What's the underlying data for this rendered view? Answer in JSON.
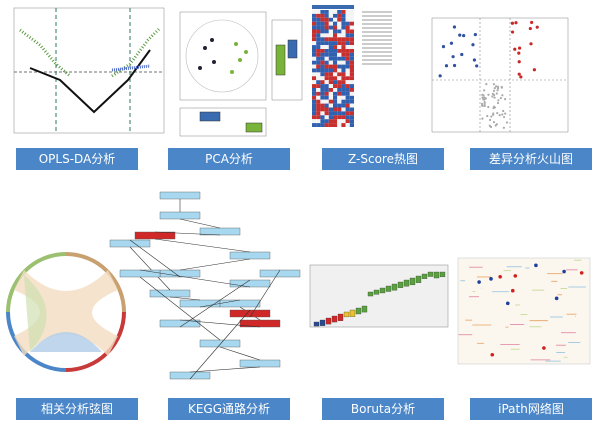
{
  "panels": [
    {
      "label": "OPLS-DA分析"
    },
    {
      "label": "PCA分析"
    },
    {
      "label": "Z-Score热图"
    },
    {
      "label": "差异分析火山图"
    },
    {
      "label": "相关分析弦图"
    },
    {
      "label": "KEGG通路分析"
    },
    {
      "label": "Boruta分析"
    },
    {
      "label": "iPath网络图"
    }
  ]
}
